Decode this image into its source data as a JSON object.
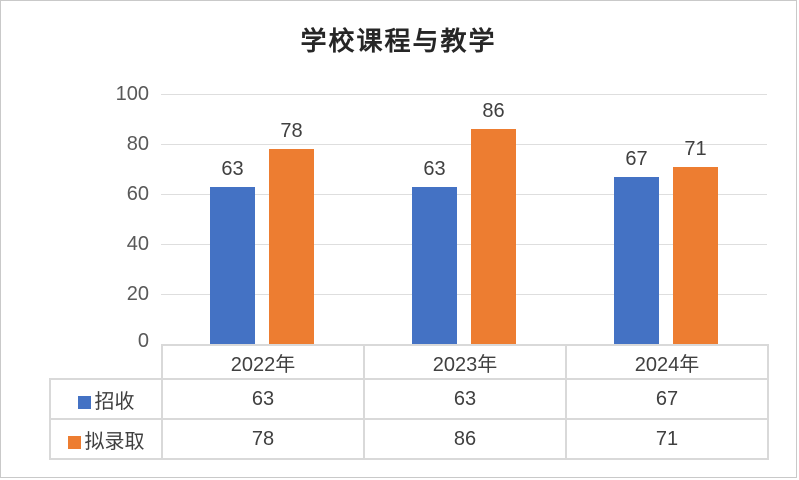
{
  "chart_data": {
    "type": "bar",
    "title": "学校课程与教学",
    "categories": [
      "2022年",
      "2023年",
      "2024年"
    ],
    "series": [
      {
        "name": "招收",
        "color": "#4472C4",
        "values": [
          63,
          63,
          67
        ]
      },
      {
        "name": "拟录取",
        "color": "#ED7D31",
        "values": [
          78,
          86,
          71
        ]
      }
    ],
    "xlabel": "",
    "ylabel": "",
    "ylim": [
      0,
      100
    ],
    "yticks": [
      0,
      20,
      40,
      60,
      80,
      100
    ],
    "grid": true,
    "legend_position": "data-table-left",
    "data_labels": true,
    "colors": {
      "grid": "#dedede",
      "table_border": "#d9d9d9",
      "axis_text": "#595959",
      "label_text": "#404040",
      "title_text": "#262626",
      "frame_border": "#c9c9c9",
      "background": "#ffffff"
    }
  }
}
